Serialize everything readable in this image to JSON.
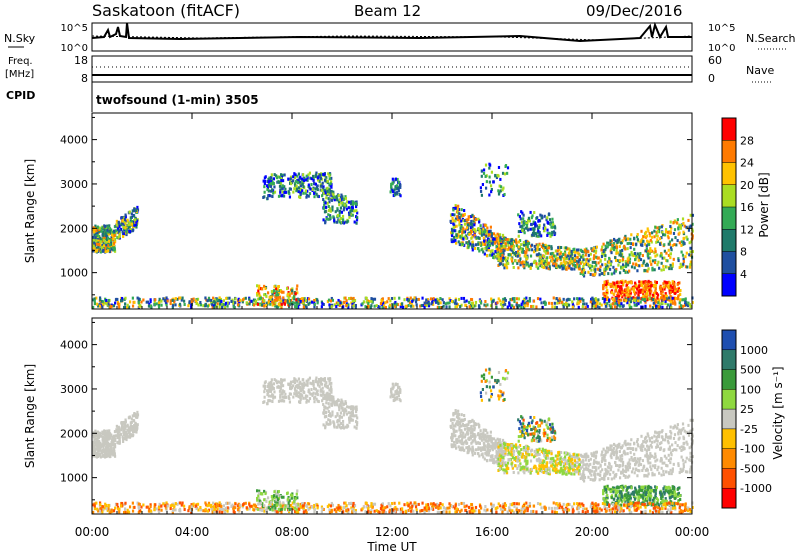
{
  "header": {
    "title": "Saskatoon (fitACF)",
    "beam": "Beam 12",
    "date": "09/Dec/2016"
  },
  "top_panels": {
    "nsky_label": "N.Sky",
    "nsky_ticks": [
      "10^5",
      "10^0"
    ],
    "nsearch_label": "N.Search",
    "nsearch_ticks": [
      "10^5",
      "10^0"
    ],
    "freq_label": "Freq.",
    "freq_unit": "[MHz]",
    "freq_ticks": [
      "18",
      "8"
    ],
    "nave_label": "Nave",
    "nave_ticks": [
      "60",
      "0"
    ],
    "cpid_label": "CPID",
    "cpid_text": "twofsound (1-min) 3505"
  },
  "chart_data": [
    {
      "type": "heatmap",
      "name": "power-panel",
      "ylabel": "Slant Range [km]",
      "yticks": [
        "4000",
        "3000",
        "2000",
        "1000"
      ],
      "ytick_values": [
        4000,
        3000,
        2000,
        1000
      ],
      "ylim": [
        180,
        4600
      ],
      "xlim_hours": [
        0,
        24
      ],
      "colorbar": {
        "label": "Power [dB]",
        "ticks": [
          "28",
          "24",
          "20",
          "16",
          "12",
          "8",
          "4"
        ],
        "colors": [
          "#ff0000",
          "#ff7a00",
          "#ffc200",
          "#aadd22",
          "#33aa55",
          "#1f7a6a",
          "#1f4fa0",
          "#0000ff"
        ]
      }
    },
    {
      "type": "heatmap",
      "name": "velocity-panel",
      "ylabel": "Slant Range [km]",
      "yticks": [
        "4000",
        "3000",
        "2000",
        "1000"
      ],
      "ytick_values": [
        4000,
        3000,
        2000,
        1000
      ],
      "ylim": [
        180,
        4600
      ],
      "xlim_hours": [
        0,
        24
      ],
      "xlabel": "Time UT",
      "xticks": [
        "00:00",
        "04:00",
        "08:00",
        "12:00",
        "16:00",
        "20:00",
        "00:00"
      ],
      "xtick_hours": [
        0,
        4,
        8,
        12,
        16,
        20,
        24
      ],
      "colorbar": {
        "label": "Velocity [m s⁻¹]",
        "ticks": [
          "1000",
          "500",
          "100",
          "25",
          "-25",
          "-100",
          "-500",
          "-1000"
        ],
        "colors": [
          "#1f4fb0",
          "#2f7a6a",
          "#3a9a3a",
          "#8fd840",
          "#c8c8c0",
          "#ffc000",
          "#ff8a00",
          "#ff5000",
          "#ff0000"
        ]
      }
    }
  ]
}
